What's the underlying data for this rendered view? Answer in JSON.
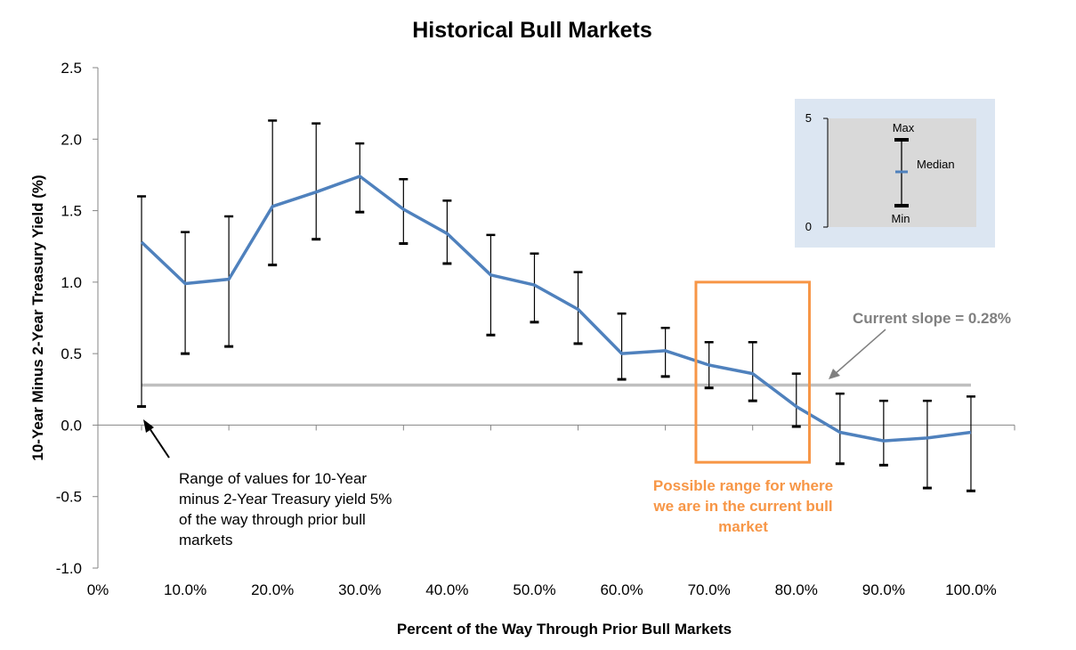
{
  "chart_data": {
    "type": "line",
    "title": "Historical Bull Markets",
    "xlabel": "Percent of the Way Through Prior Bull Markets",
    "ylabel": "10-Year Minus 2-Year Treasury Yield (%)",
    "ylim": [
      -1.0,
      2.5
    ],
    "xlim": [
      0,
      105
    ],
    "y_ticks": [
      -1.0,
      -0.5,
      0.0,
      0.5,
      1.0,
      1.5,
      2.0,
      2.5
    ],
    "y_tick_labels": [
      "-1.0",
      "-0.5",
      "0.0",
      "0.5",
      "1.0",
      "1.5",
      "2.0",
      "2.5"
    ],
    "x_tick_values": [
      0,
      10,
      20,
      30,
      40,
      50,
      60,
      70,
      80,
      90,
      100
    ],
    "x_tick_labels": [
      "0%",
      "10.0%",
      "20.0%",
      "30.0%",
      "40.0%",
      "50.0%",
      "60.0%",
      "70.0%",
      "80.0%",
      "90.0%",
      "100.0%"
    ],
    "x_minor_ticks": [
      5,
      15,
      25,
      35,
      45,
      55,
      65,
      75,
      85,
      95,
      105
    ],
    "grid": false,
    "series": [
      {
        "x": [
          5,
          10,
          15,
          20,
          25,
          30,
          35,
          40,
          45,
          50,
          55,
          60,
          65,
          70,
          75,
          80,
          85,
          90,
          95,
          100
        ],
        "median": [
          1.28,
          0.99,
          1.02,
          1.53,
          1.63,
          1.74,
          1.51,
          1.34,
          1.05,
          0.98,
          0.81,
          0.5,
          0.52,
          0.42,
          0.36,
          0.13,
          -0.05,
          -0.11,
          -0.09,
          -0.05
        ],
        "max": [
          1.6,
          1.35,
          1.46,
          2.13,
          2.11,
          1.97,
          1.72,
          1.57,
          1.33,
          1.2,
          1.07,
          0.78,
          0.68,
          0.58,
          0.58,
          0.36,
          0.22,
          0.17,
          0.17,
          0.2
        ],
        "min": [
          0.13,
          0.5,
          0.55,
          1.12,
          1.3,
          1.49,
          1.27,
          1.13,
          0.63,
          0.72,
          0.57,
          0.32,
          0.34,
          0.26,
          0.17,
          -0.01,
          -0.27,
          -0.28,
          -0.44,
          -0.46
        ],
        "color": "#4F81BD"
      }
    ],
    "reference_line": {
      "y": 0.28,
      "color": "#BFBFBF"
    },
    "annotations": {
      "range_note": {
        "lines": [
          "Range of values for 10-Year",
          "minus 2-Year Treasury yield 5%",
          "of the way through prior bull",
          "markets"
        ]
      },
      "possible_range": {
        "lines": [
          "Possible range for where",
          "we are in the current bull",
          "market"
        ],
        "color": "#F79646",
        "x_range": [
          68.5,
          81.5
        ],
        "y_range": [
          -0.26,
          1.0
        ]
      },
      "current_slope": {
        "text": "Current slope = 0.28%",
        "color": "#808080"
      }
    },
    "legend": {
      "axis_top": "5",
      "axis_bottom": "0",
      "max_label": "Max",
      "median_label": "Median",
      "min_label": "Min",
      "background": "#DCE6F2",
      "inner_background": "#D9D9D9"
    }
  }
}
